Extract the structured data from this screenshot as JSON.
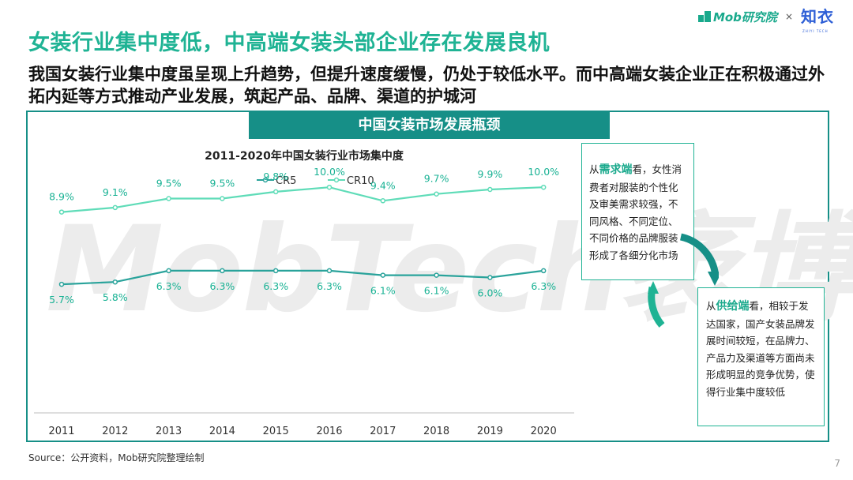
{
  "brand": {
    "mob": "Mob研究院",
    "x": "×",
    "zhiyi": "知衣",
    "zhiyi_sub": "ZHIYI TECH"
  },
  "title": "女装行业集中度低，中高端女装头部企业存在发展良机",
  "subtitle": "我国女装行业集中度虽呈现上升趋势，但提升速度缓慢，仍处于较低水平。而中高端女装企业正在积极通过外拓内延等方式推动产业发展，筑起产品、品牌、渠道的护城河",
  "panel_title": "中国女装市场发展瓶颈",
  "watermark": "MobTech袤博",
  "chart_data": {
    "type": "line",
    "title": "2011-2020年中国女装行业市场集中度",
    "categories": [
      "2011",
      "2012",
      "2013",
      "2014",
      "2015",
      "2016",
      "2017",
      "2018",
      "2019",
      "2020"
    ],
    "series": [
      {
        "name": "CR5",
        "values": [
          5.7,
          5.8,
          6.3,
          6.3,
          6.3,
          6.3,
          6.1,
          6.1,
          6.0,
          6.3
        ],
        "labels": [
          "5.7%",
          "5.8%",
          "6.3%",
          "6.3%",
          "6.3%",
          "6.3%",
          "6.1%",
          "6.1%",
          "6.0%",
          "6.3%"
        ],
        "color": "#2aa39b"
      },
      {
        "name": "CR10",
        "values": [
          8.9,
          9.1,
          9.5,
          9.5,
          9.8,
          10.0,
          9.4,
          9.7,
          9.9,
          10.0
        ],
        "labels": [
          "8.9%",
          "9.1%",
          "9.5%",
          "9.5%",
          "9.8%",
          "10.0%",
          "9.4%",
          "9.7%",
          "9.9%",
          "10.0%"
        ],
        "color": "#5fdcb8"
      }
    ],
    "ylim": [
      0,
      12
    ],
    "legend": "top-center",
    "label_color": "#19b294",
    "axis_color": "#bdbdbd"
  },
  "demand": {
    "lead": "从",
    "highlight": "需求端",
    "text": "看，女性消费者对服装的个性化及审美需求较强，不同风格、不同定位、不同价格的品牌服装形成了各细分化市场"
  },
  "supply": {
    "lead": "从",
    "highlight": "供给端",
    "text": "看，相较于发达国家，国产女装品牌发展时间较短，在品牌力、产品力及渠道等方面尚未形成明显的竞争优势，使得行业集中度较低"
  },
  "source": "Source：公开资料，Mob研究院整理绘制",
  "page_number": "7"
}
